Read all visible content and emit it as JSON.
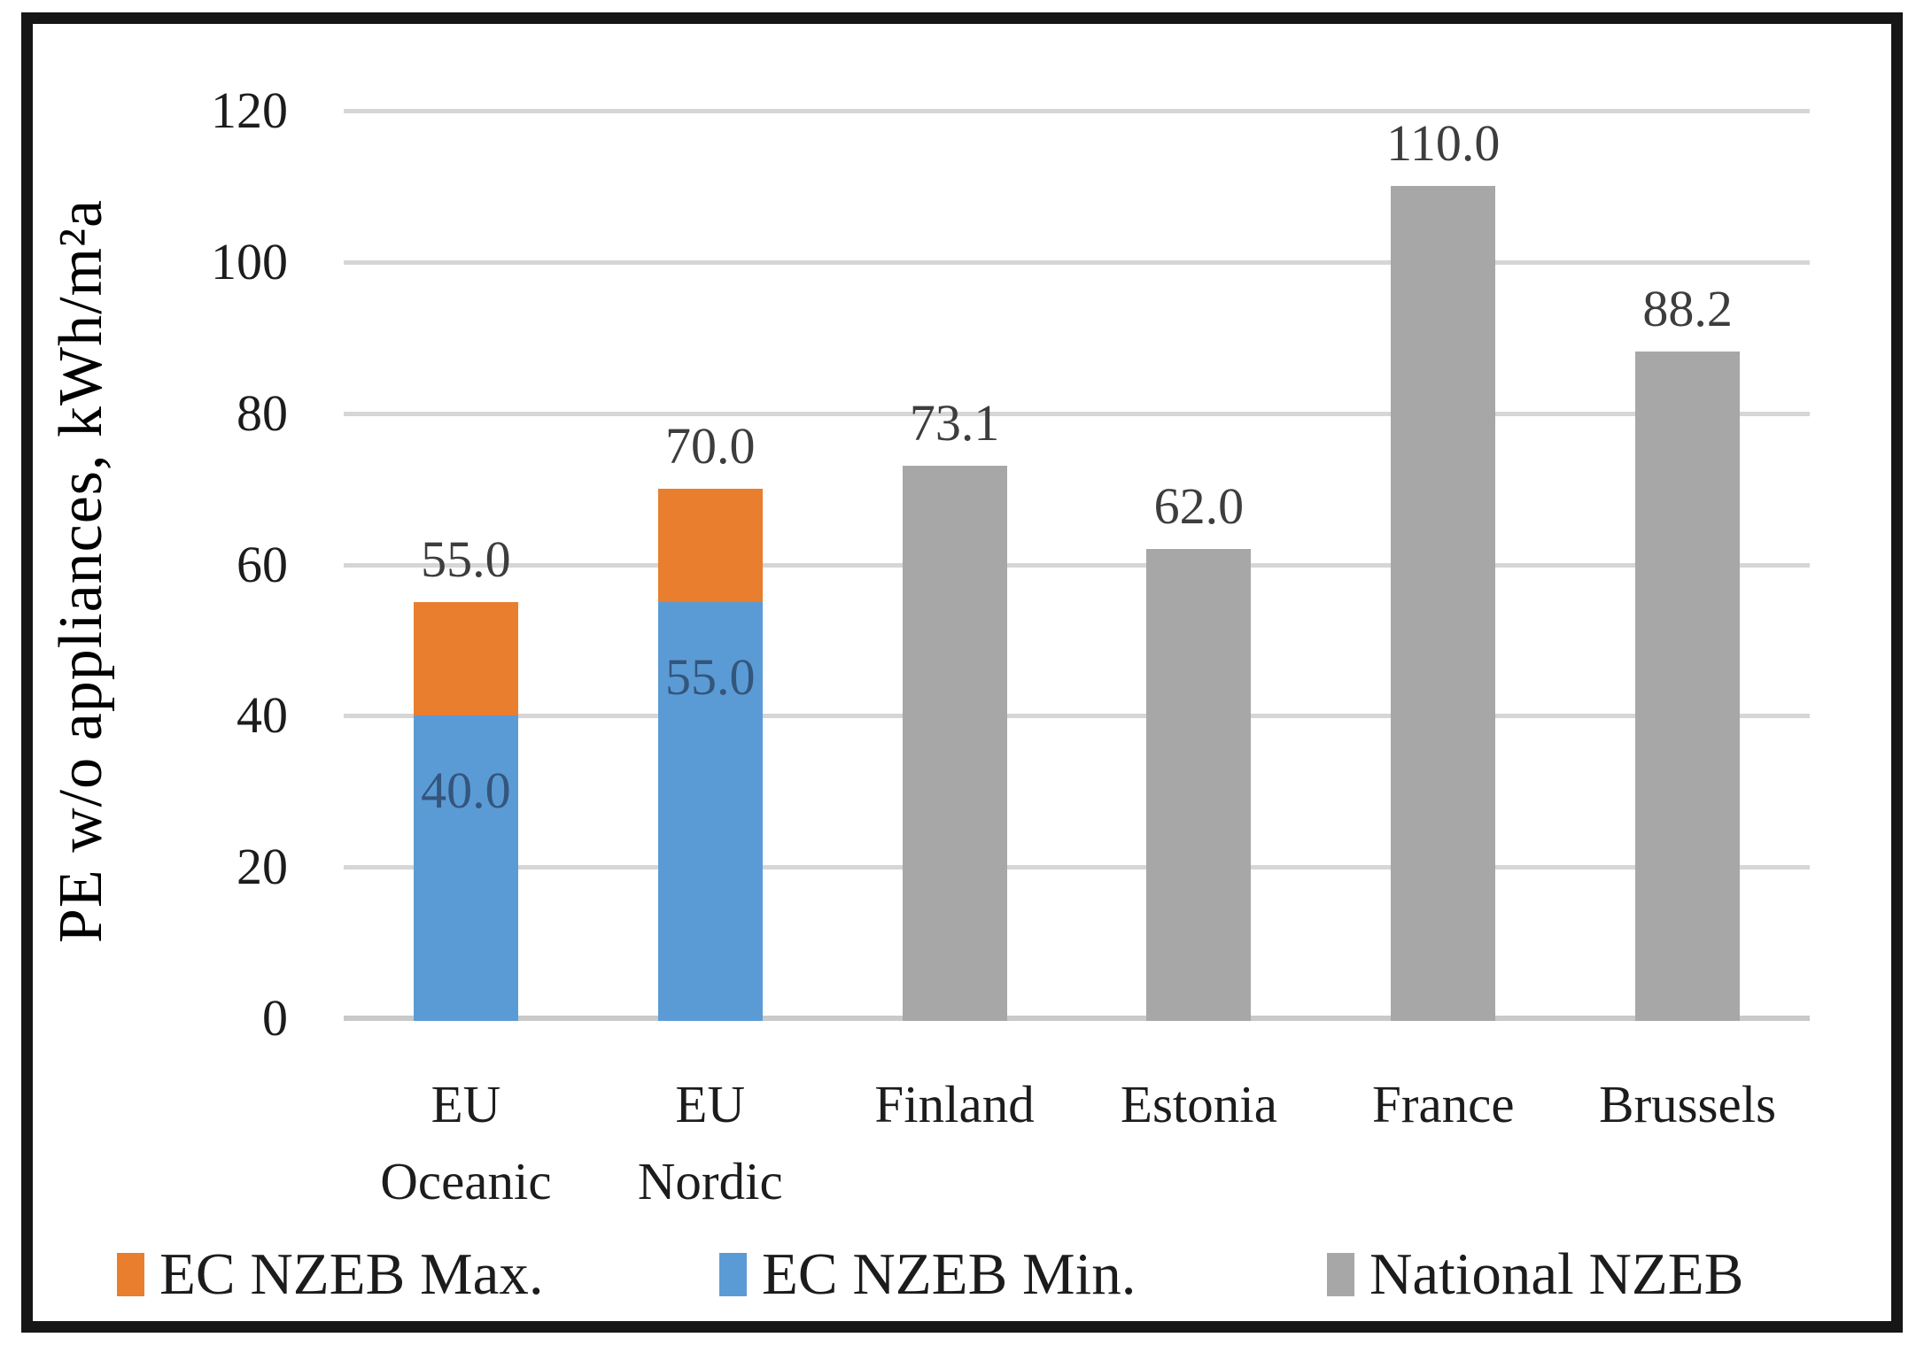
{
  "chart_data": {
    "type": "bar",
    "title": "",
    "xlabel": "",
    "ylabel": "PE w/o appliances, kWh/m²a",
    "ylim": [
      0,
      120
    ],
    "yticks": [
      0,
      20,
      40,
      60,
      80,
      100,
      120
    ],
    "grid": true,
    "legend_position": "bottom",
    "categories": [
      "EU Oceanic",
      "EU Nordic",
      "Finland",
      "Estonia",
      "France",
      "Brussels"
    ],
    "x_tick_lines": [
      [
        "EU",
        "Oceanic"
      ],
      [
        "EU",
        "Nordic"
      ],
      [
        "Finland"
      ],
      [
        "Estonia"
      ],
      [
        "France"
      ],
      [
        "Brussels"
      ]
    ],
    "series": [
      {
        "name": "EC NZEB Max.",
        "role": "stack_total",
        "color": "#E87E2E",
        "values": [
          55.0,
          70.0,
          null,
          null,
          null,
          null
        ]
      },
      {
        "name": "EC NZEB Min.",
        "role": "stack_base",
        "color": "#5B9BD5",
        "values": [
          40.0,
          55.0,
          null,
          null,
          null,
          null
        ]
      },
      {
        "name": "National NZEB",
        "role": "single",
        "color": "#A7A7A7",
        "values": [
          null,
          null,
          73.1,
          62.0,
          110.0,
          88.2
        ]
      }
    ],
    "data_labels": {
      "above": [
        "55.0",
        "70.0",
        "73.1",
        "62.0",
        "110.0",
        "88.2"
      ],
      "inside": [
        "40.0",
        "55.0",
        null,
        null,
        null,
        null
      ]
    }
  },
  "colors": {
    "grid": "#D6D6D6",
    "baseline": "#C9C9C9",
    "axis_text": "#1C1C1C",
    "label_above": "#3D3D3D",
    "label_inside": "#34557C",
    "frame": "#161616"
  }
}
